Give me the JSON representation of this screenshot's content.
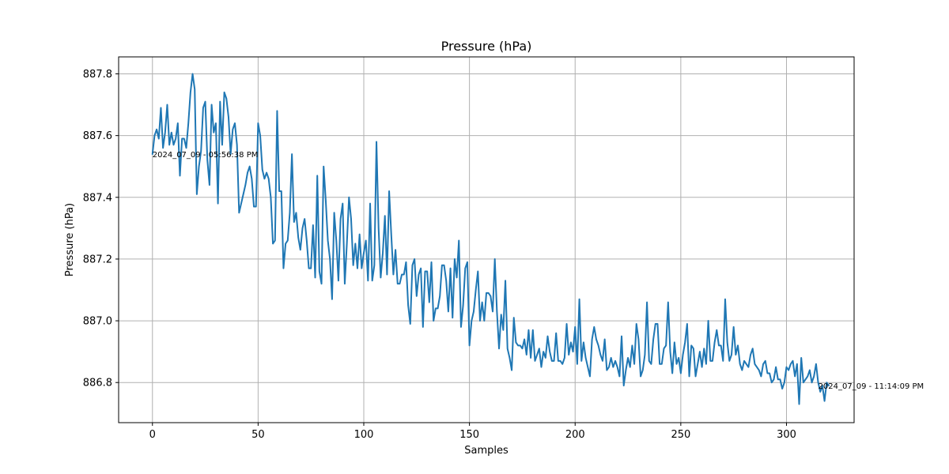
{
  "chart_data": {
    "type": "line",
    "title": "Pressure (hPa)",
    "xlabel": "Samples",
    "ylabel": "Pressure (hPa)",
    "xlim": [
      -16,
      332
    ],
    "ylim": [
      886.67,
      887.855
    ],
    "grid": true,
    "x_ticks": [
      0,
      50,
      100,
      150,
      200,
      250,
      300
    ],
    "y_ticks": [
      886.8,
      887.0,
      887.2,
      887.4,
      887.6,
      887.8
    ],
    "x_tick_labels": [
      "0",
      "50",
      "100",
      "150",
      "200",
      "250",
      "300"
    ],
    "y_tick_labels": [
      "886.8",
      "887.0",
      "887.2",
      "887.4",
      "887.6",
      "887.8"
    ],
    "series": [
      {
        "color": "#1f77b4",
        "values": [
          887.54,
          887.6,
          887.62,
          887.59,
          887.69,
          887.56,
          887.61,
          887.7,
          887.57,
          887.61,
          887.57,
          887.59,
          887.64,
          887.47,
          887.59,
          887.59,
          887.56,
          887.64,
          887.74,
          887.8,
          887.75,
          887.41,
          887.5,
          887.55,
          887.69,
          887.71,
          887.52,
          887.44,
          887.7,
          887.61,
          887.64,
          887.38,
          887.71,
          887.57,
          887.74,
          887.72,
          887.66,
          887.54,
          887.62,
          887.64,
          887.57,
          887.35,
          887.38,
          887.41,
          887.44,
          887.48,
          887.5,
          887.46,
          887.37,
          887.37,
          887.64,
          887.6,
          887.49,
          887.46,
          887.48,
          887.46,
          887.4,
          887.25,
          887.26,
          887.68,
          887.42,
          887.42,
          887.17,
          887.25,
          887.26,
          887.35,
          887.54,
          887.32,
          887.35,
          887.27,
          887.23,
          887.3,
          887.33,
          887.26,
          887.17,
          887.17,
          887.31,
          887.14,
          887.47,
          887.16,
          887.12,
          887.5,
          887.39,
          887.26,
          887.2,
          887.07,
          887.35,
          887.26,
          887.13,
          887.33,
          887.38,
          887.12,
          887.25,
          887.4,
          887.33,
          887.18,
          887.25,
          887.17,
          887.28,
          887.17,
          887.22,
          887.26,
          887.13,
          887.38,
          887.13,
          887.18,
          887.58,
          887.3,
          887.14,
          887.22,
          887.34,
          887.15,
          887.42,
          887.28,
          887.15,
          887.23,
          887.12,
          887.12,
          887.15,
          887.15,
          887.19,
          887.05,
          886.99,
          887.18,
          887.2,
          887.08,
          887.15,
          887.17,
          886.98,
          887.16,
          887.16,
          887.06,
          887.19,
          887.0,
          887.04,
          887.04,
          887.08,
          887.18,
          887.18,
          887.13,
          887.03,
          887.17,
          887.01,
          887.2,
          887.14,
          887.26,
          886.98,
          887.05,
          887.17,
          887.19,
          886.92,
          887.0,
          887.03,
          887.1,
          887.16,
          887.0,
          887.06,
          887.0,
          887.09,
          887.09,
          887.08,
          887.03,
          887.2,
          887.03,
          886.91,
          887.02,
          886.97,
          887.13,
          886.91,
          886.88,
          886.84,
          887.01,
          886.93,
          886.92,
          886.92,
          886.91,
          886.94,
          886.89,
          886.97,
          886.88,
          886.97,
          886.87,
          886.89,
          886.91,
          886.85,
          886.9,
          886.88,
          886.95,
          886.9,
          886.87,
          886.87,
          886.96,
          886.87,
          886.87,
          886.86,
          886.88,
          886.99,
          886.89,
          886.93,
          886.9,
          886.98,
          886.86,
          887.07,
          886.87,
          886.93,
          886.88,
          886.85,
          886.82,
          886.94,
          886.98,
          886.94,
          886.92,
          886.89,
          886.87,
          886.94,
          886.84,
          886.85,
          886.88,
          886.85,
          886.87,
          886.85,
          886.82,
          886.95,
          886.79,
          886.84,
          886.88,
          886.85,
          886.92,
          886.86,
          886.99,
          886.94,
          886.82,
          886.84,
          886.89,
          887.06,
          886.87,
          886.86,
          886.94,
          886.99,
          886.99,
          886.86,
          886.86,
          886.91,
          886.92,
          887.06,
          886.9,
          886.83,
          886.93,
          886.86,
          886.88,
          886.83,
          886.89,
          886.93,
          886.99,
          886.82,
          886.92,
          886.91,
          886.82,
          886.86,
          886.9,
          886.85,
          886.91,
          886.86,
          887.0,
          886.87,
          886.87,
          886.93,
          886.97,
          886.92,
          886.92,
          886.87,
          887.07,
          886.93,
          886.87,
          886.89,
          886.98,
          886.89,
          886.92,
          886.86,
          886.84,
          886.87,
          886.86,
          886.85,
          886.89,
          886.91,
          886.86,
          886.85,
          886.84,
          886.82,
          886.86,
          886.87,
          886.83,
          886.83,
          886.8,
          886.81,
          886.85,
          886.81,
          886.81,
          886.78,
          886.8,
          886.85,
          886.84,
          886.86,
          886.87,
          886.82,
          886.86,
          886.73,
          886.88,
          886.8,
          886.81,
          886.82,
          886.84,
          886.8,
          886.82,
          886.86,
          886.8,
          886.77,
          886.79,
          886.74,
          886.8,
          886.79
        ]
      }
    ],
    "annotations": [
      {
        "text": "2024_07_09 - 05:56:38 PM",
        "x": 0,
        "y": 887.54
      },
      {
        "text": "2024_07_09 - 11:14:09 PM",
        "x": 315,
        "y": 886.79
      }
    ]
  }
}
